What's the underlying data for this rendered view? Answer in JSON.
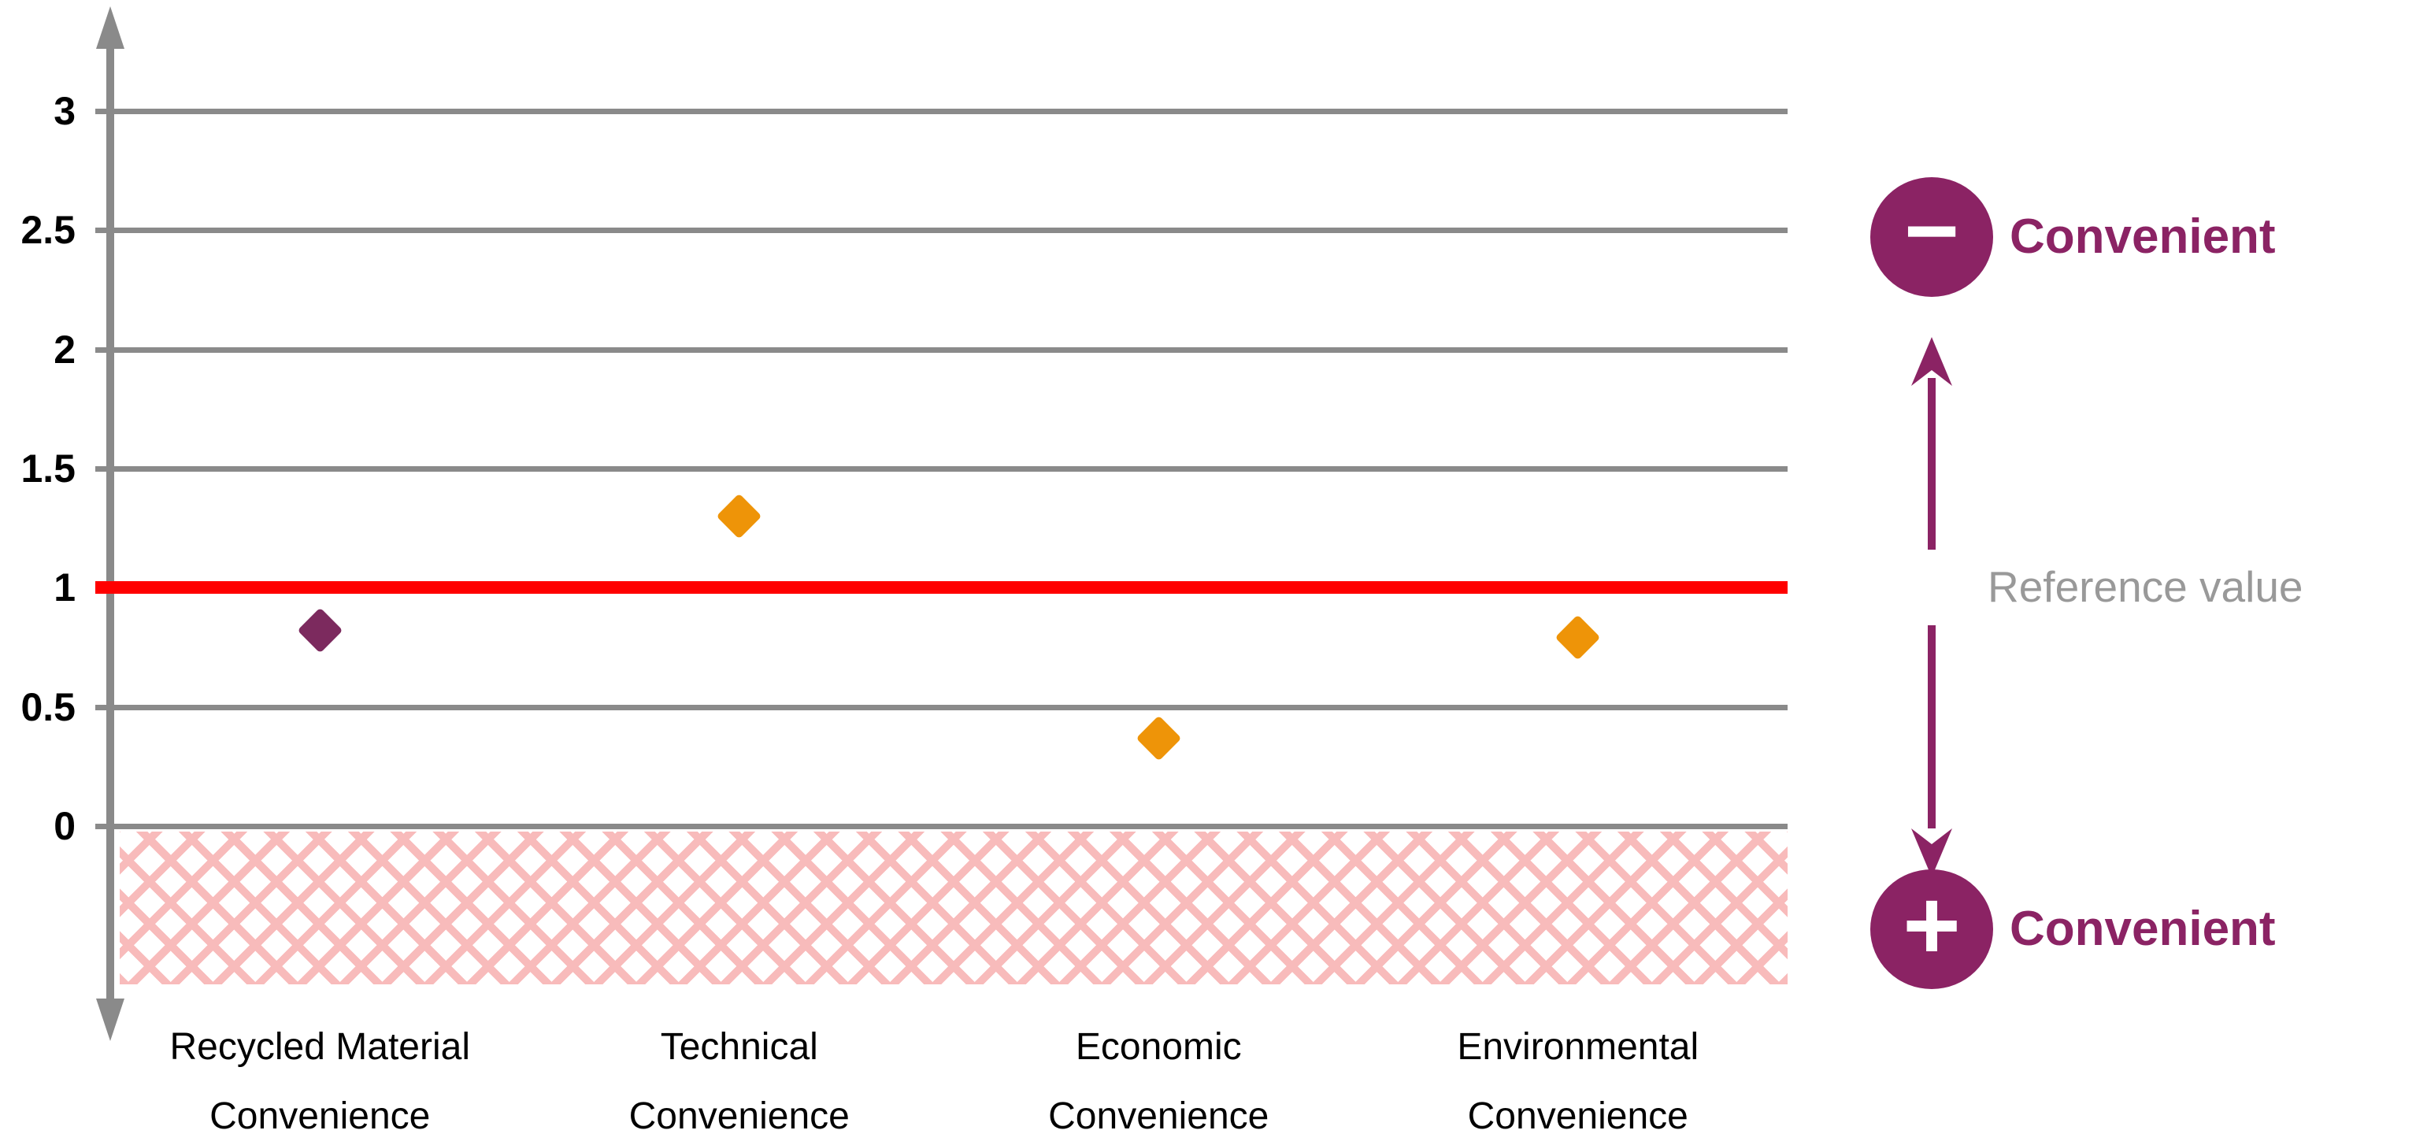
{
  "chart_data": {
    "type": "scatter",
    "marker": "diamond",
    "title": "",
    "xlabel": "",
    "ylabel": "",
    "categories": [
      "Recycled Material\nConvenience",
      "Technical\nConvenience",
      "Economic\nConvenience",
      "Environmental\nConvenience"
    ],
    "values": [
      0.82,
      1.3,
      0.37,
      0.79
    ],
    "point_colors": [
      "#7C2A5E",
      "#EE9408",
      "#EE9408",
      "#EE9408"
    ],
    "yticks": [
      0,
      0.5,
      1,
      1.5,
      2,
      2.5,
      3
    ],
    "ylim": [
      0,
      3
    ],
    "grid": true,
    "reference_line": {
      "value": 1,
      "color": "#FF0000",
      "label": "Reference value"
    },
    "hatched_region": {
      "from": 0,
      "direction": "below",
      "style": "pink-crosshatch"
    }
  },
  "legend": {
    "negative": {
      "symbol": "−",
      "label": "Convenient"
    },
    "positive": {
      "symbol": "+",
      "label": "Convenient"
    },
    "arrow_label": "Reference value"
  },
  "colors": {
    "purple": "#8B2364",
    "purple_point": "#7C2A5E",
    "orange": "#EE9408",
    "red": "#FF0000",
    "grid": "#8A8A8A",
    "graytext": "#999999",
    "pink": "#F8BBBB"
  }
}
